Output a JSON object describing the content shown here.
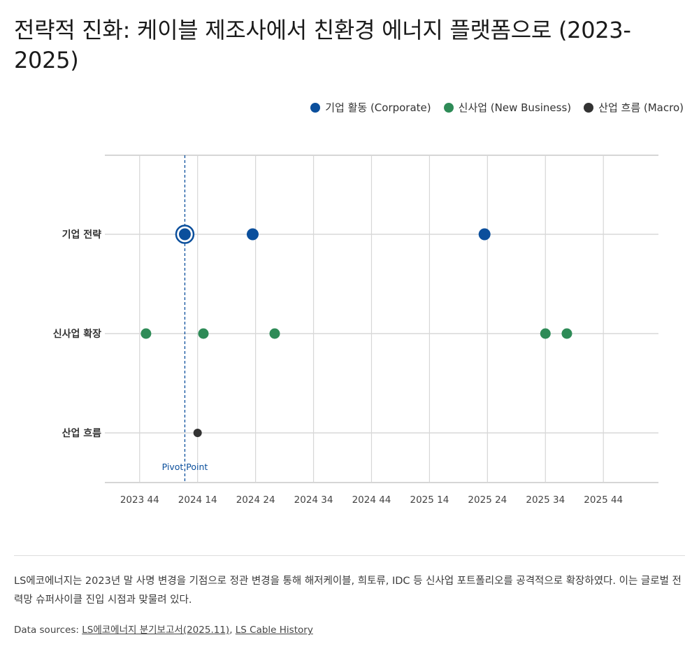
{
  "title": "전략적 진화: 케이블 제조사에서 친환경 에너지 플랫폼으로 (2023-2025)",
  "legend": [
    {
      "label": "기업 활동 (Corporate)",
      "color": "#0b4f9c",
      "icon": "circle"
    },
    {
      "label": "신사업 (New Business)",
      "color": "#2e8b57",
      "icon": "circle"
    },
    {
      "label": "산업 흐름 (Macro)",
      "color": "#333333",
      "icon": "circle"
    }
  ],
  "chart_data": {
    "type": "scatter",
    "categories": [
      "기업 전략",
      "신사업 확장",
      "산업 흐름"
    ],
    "x_ticks": [
      "2023 44",
      "2024 14",
      "2024 24",
      "2024 34",
      "2024 44",
      "2025 14",
      "2025 24",
      "2025 34",
      "2025 44"
    ],
    "x_range": [
      -0.6,
      8.95
    ],
    "grid": true,
    "series": [
      {
        "name": "기업 활동 (Corporate)",
        "color": "#0b4f9c",
        "category": "기업 전략",
        "x": [
          0.78,
          1.95,
          5.95
        ]
      },
      {
        "name": "신사업 (New Business)",
        "color": "#2e8b57",
        "category": "신사업 확장",
        "x": [
          0.11,
          1.1,
          2.33,
          7.0,
          7.37
        ]
      },
      {
        "name": "산업 흐름 (Macro)",
        "color": "#333333",
        "category": "산업 흐름",
        "x": [
          1.0
        ]
      }
    ],
    "highlight": {
      "category": "기업 전략",
      "x": 0.78
    },
    "annotation": {
      "label": "Pivot Point",
      "x": 0.78,
      "color": "#0b4f9c"
    }
  },
  "description": "LS에코에너지는 2023년 말 사명 변경을 기점으로 정관 변경을 통해 해저케이블, 희토류, IDC 등 신사업 포트폴리오를 공격적으로 확장하였다. 이는 글로벌 전력망 슈퍼사이클 진입 시점과 맞물려 있다.",
  "sources": {
    "prefix": "Data sources: ",
    "links": [
      "LS에코에너지 분기보고서(2025.11)",
      "LS Cable History"
    ],
    "separator": ", "
  }
}
